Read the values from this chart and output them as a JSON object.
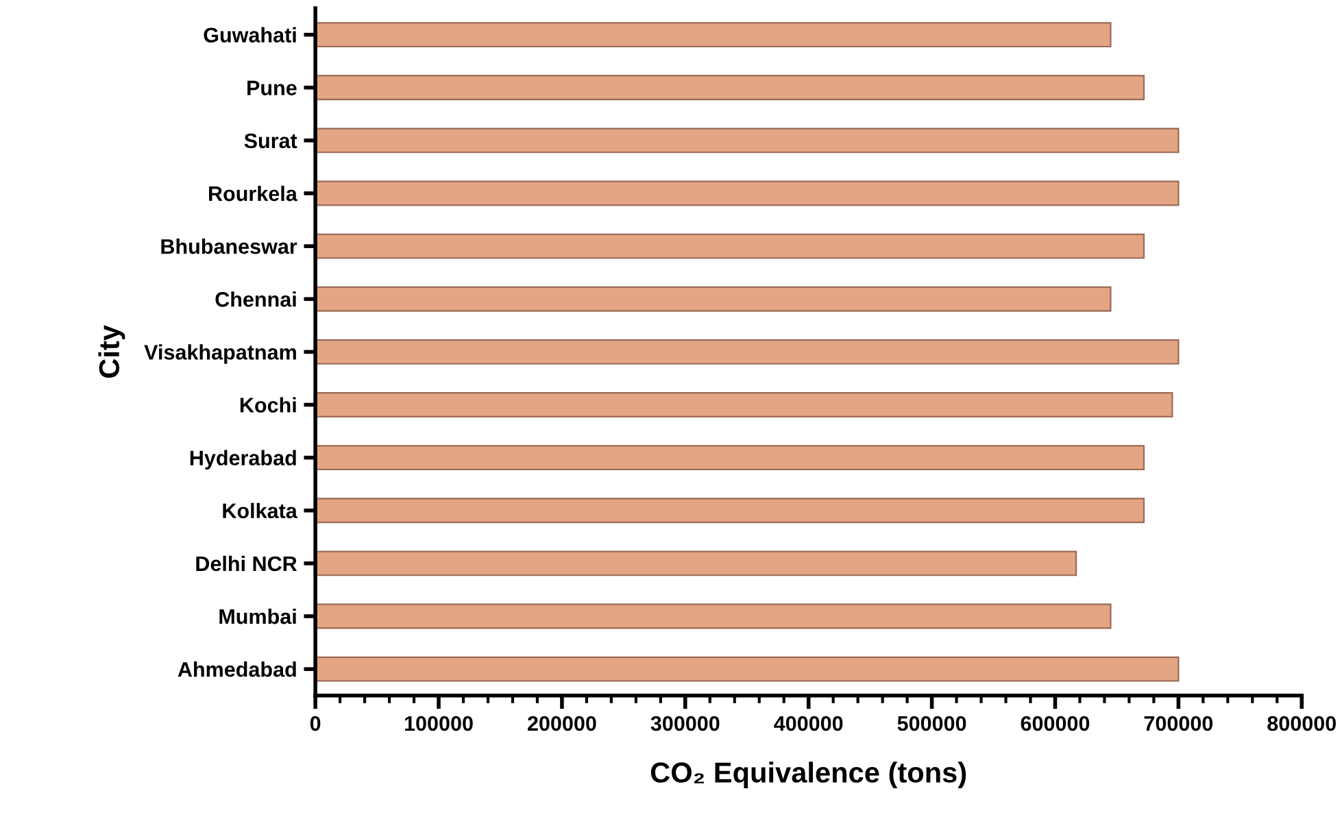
{
  "chart_data": {
    "type": "bar",
    "orientation": "horizontal",
    "xlabel": "CO₂ Equivalence (tons)",
    "ylabel": "City",
    "categories": [
      "Guwahati",
      "Pune",
      "Surat",
      "Rourkela",
      "Bhubaneswar",
      "Chennai",
      "Visakhapatnam",
      "Kochi",
      "Hyderabad",
      "Kolkata",
      "Delhi NCR",
      "Mumbai",
      "Ahmedabad"
    ],
    "values": [
      645000,
      672000,
      700000,
      700000,
      672000,
      645000,
      700000,
      695000,
      672000,
      672000,
      617000,
      645000,
      700000
    ],
    "color": "#e3a584",
    "xlim": [
      0,
      800000
    ],
    "xticks": [
      0,
      100000,
      200000,
      300000,
      400000,
      500000,
      600000,
      700000,
      800000
    ],
    "grid": false
  }
}
